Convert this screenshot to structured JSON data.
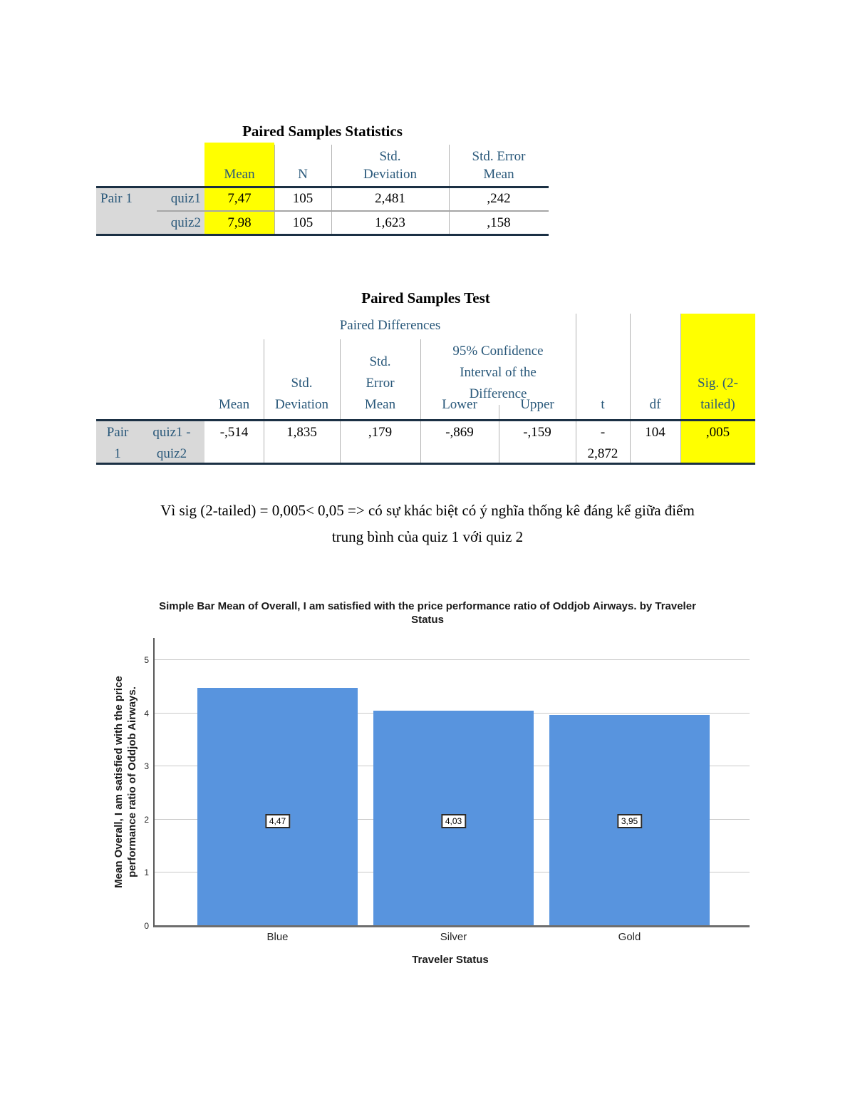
{
  "table1": {
    "title": "Paired Samples Statistics",
    "headers": {
      "mean": "Mean",
      "n": "N",
      "std_deviation": "Std.\nDeviation",
      "std_error_mean": "Std. Error\nMean"
    },
    "rows": [
      {
        "pair": "Pair 1",
        "variable": "quiz1",
        "mean": "7,47",
        "n": "105",
        "std_deviation": "2,481",
        "std_error_mean": ",242"
      },
      {
        "pair": "",
        "variable": "quiz2",
        "mean": "7,98",
        "n": "105",
        "std_deviation": "1,623",
        "std_error_mean": ",158"
      }
    ]
  },
  "table2": {
    "title": "Paired Samples Test",
    "spanner": "Paired Differences",
    "ci_spanner": "95% Confidence\nInterval of the\nDifference",
    "headers": {
      "mean": "Mean",
      "std_deviation": "Std.\nDeviation",
      "std_error_mean": "Std.\nError\nMean",
      "lower": "Lower",
      "upper": "Upper",
      "t": "t",
      "df": "df",
      "sig": "Sig. (2-\ntailed)"
    },
    "row": {
      "pair": "Pair\n1",
      "variable": "quiz1 -\nquiz2",
      "mean": "-,514",
      "std_deviation": "1,835",
      "std_error_mean": ",179",
      "lower": "-,869",
      "upper": "-,159",
      "t": "-\n2,872",
      "df": "104",
      "sig": ",005"
    }
  },
  "note": {
    "line1": "Vì sig (2-tailed) = 0,005< 0,05 => có sự khác biệt  có ý nghĩa thống kê đáng kể giữa điểm",
    "line2": "trung bình của quiz 1 với quiz 2"
  },
  "chart": {
    "title_lines": "Simple Bar Mean of Overall, I am satisfied with the price performance ratio of Oddjob Airways. by Traveler\nStatus",
    "y_axis_label": "Mean Overall, I am satisfied with the price\nperformance ratio of Oddjob Airways.",
    "x_axis_label": "Traveler Status",
    "categories": [
      "Blue",
      "Silver",
      "Gold"
    ],
    "values": [
      4.47,
      4.03,
      3.95
    ],
    "bar_labels": [
      "4,47",
      "4,03",
      "3,95"
    ],
    "y_ticks": [
      0,
      1,
      2,
      3,
      4,
      5
    ],
    "bar_color": "#5894DE"
  },
  "chart_data": {
    "type": "bar",
    "title": "Simple Bar Mean of Overall, I am satisfied with the price performance ratio of Oddjob Airways. by Traveler Status",
    "categories": [
      "Blue",
      "Silver",
      "Gold"
    ],
    "values": [
      4.47,
      4.03,
      3.95
    ],
    "data_labels": [
      "4,47",
      "4,03",
      "3,95"
    ],
    "xlabel": "Traveler Status",
    "ylabel": "Mean Overall, I am satisfied with the price performance ratio of Oddjob Airways.",
    "ylim": [
      0,
      5
    ],
    "grid": true,
    "legend": false
  },
  "colors": {
    "highlight": "#ffff00",
    "header_text": "#29587a",
    "row_label_bg": "#d9d9d9",
    "heavy_border": "#1b3044",
    "bar": "#5894DE"
  }
}
